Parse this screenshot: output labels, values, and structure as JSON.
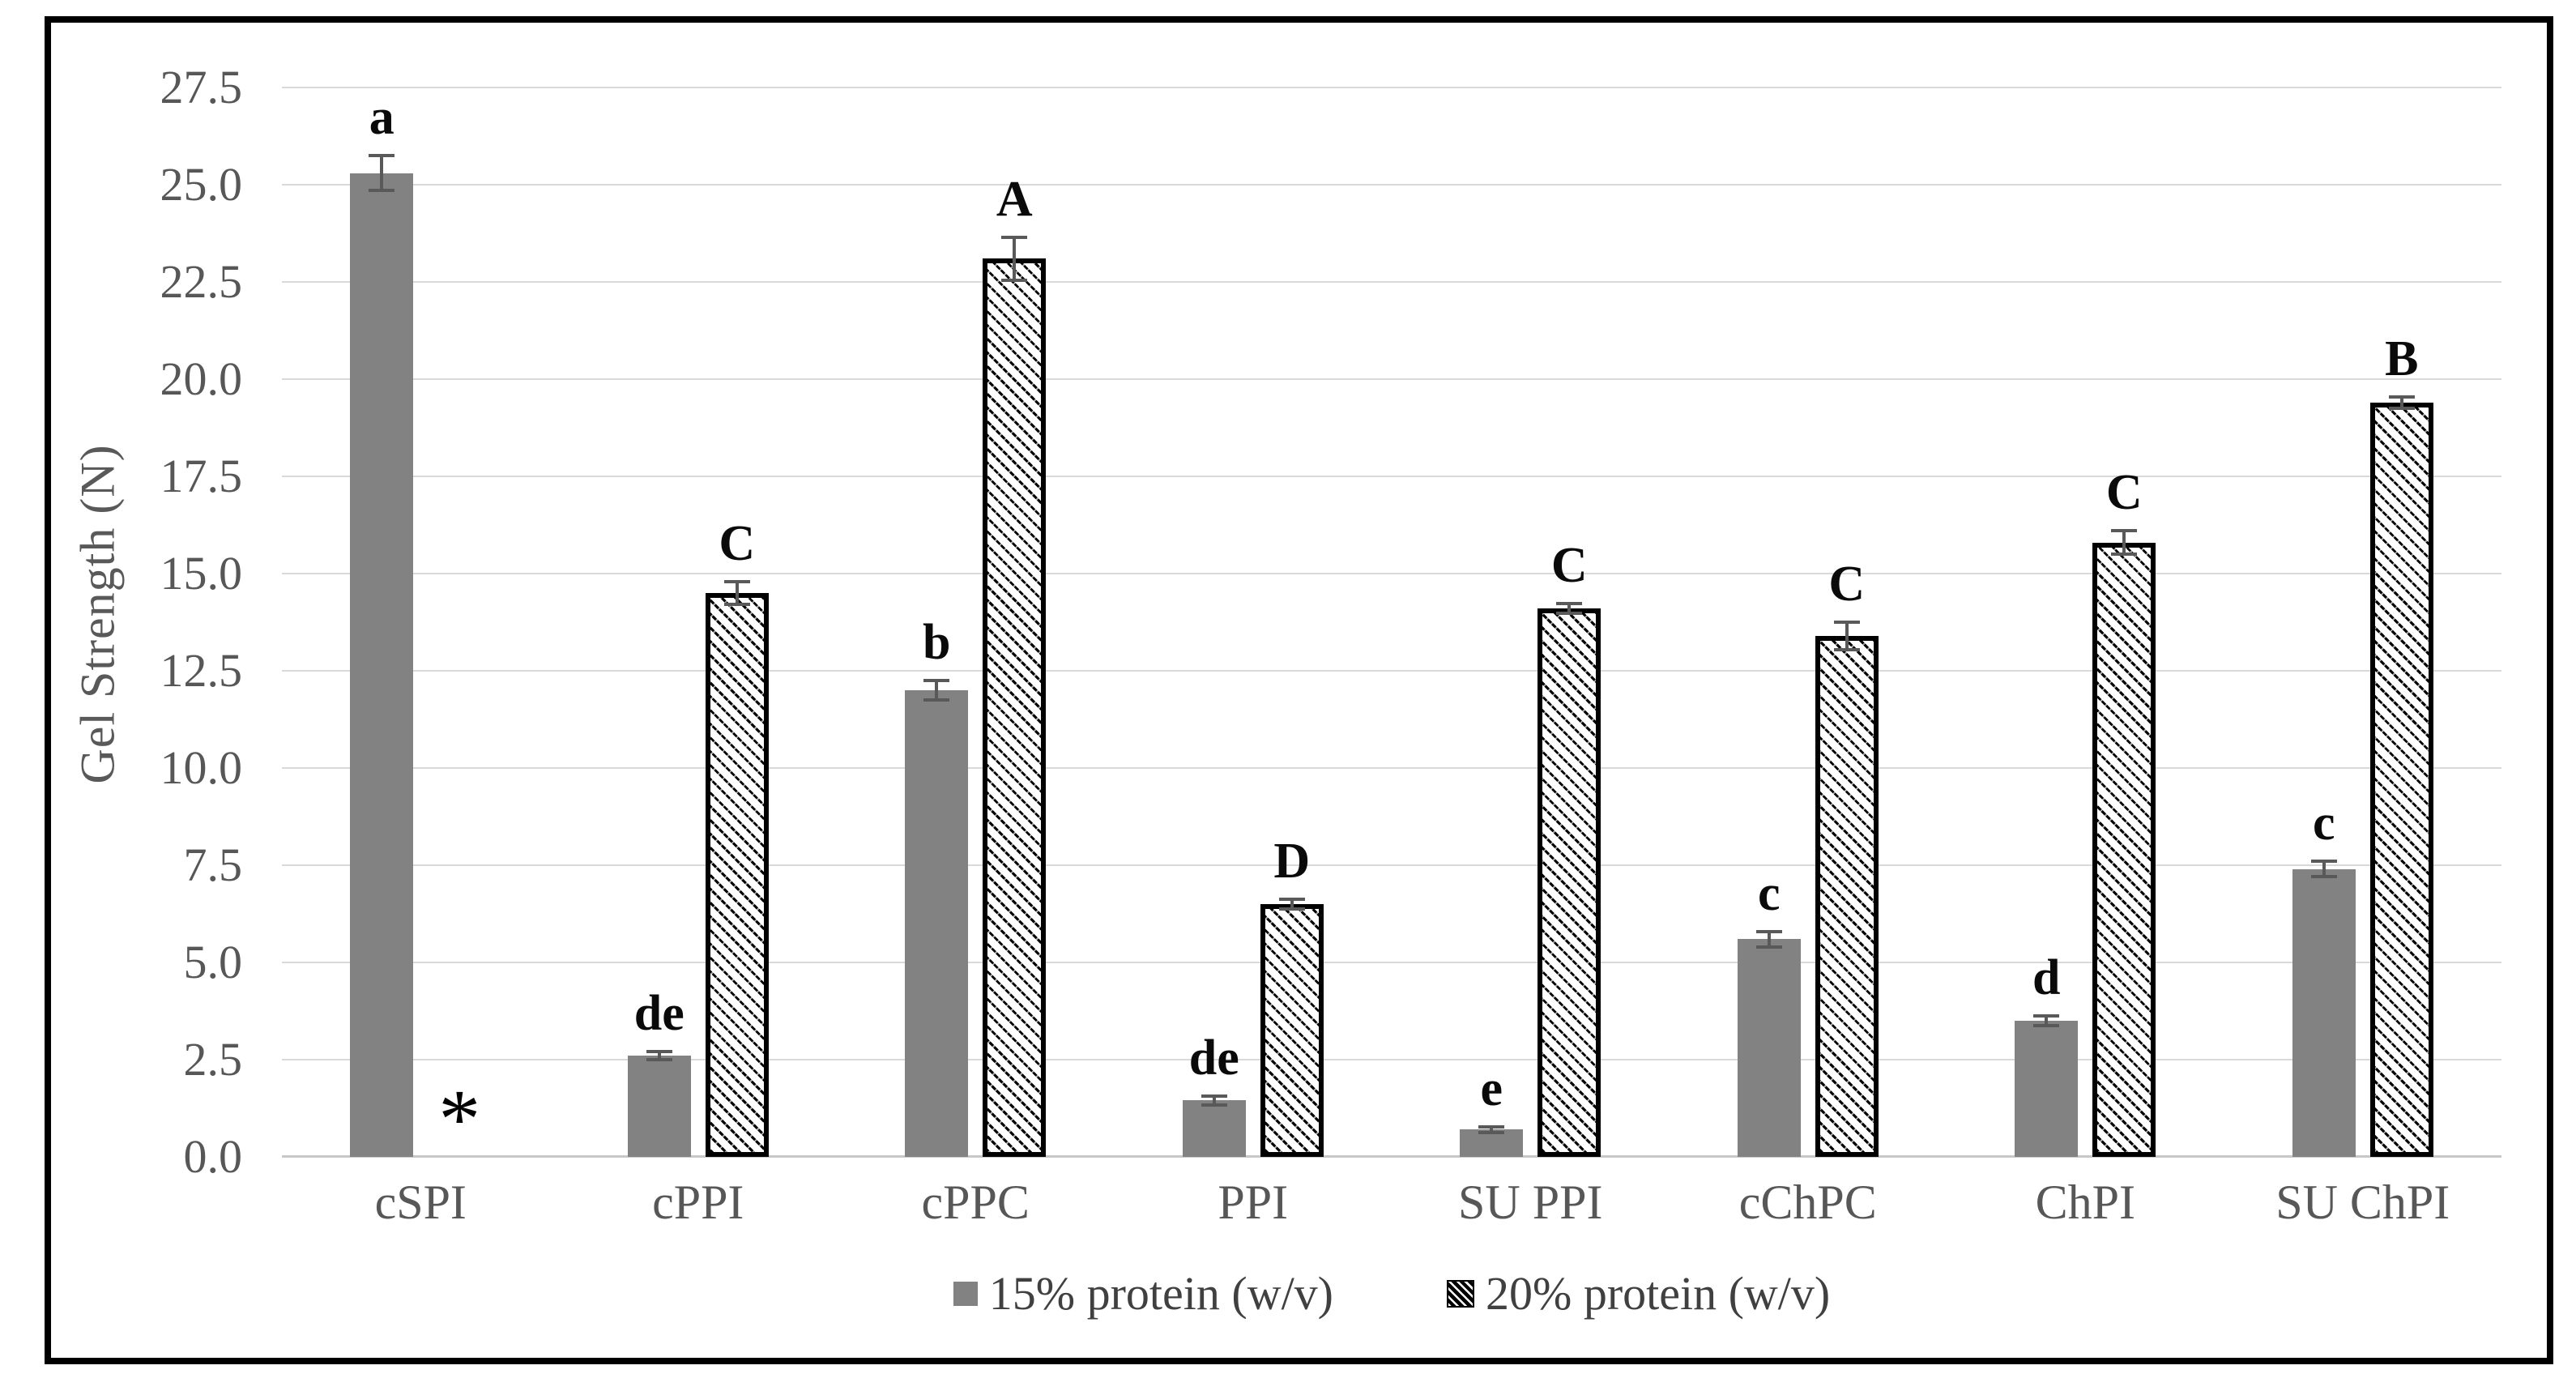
{
  "chart_data": {
    "type": "bar",
    "title": "",
    "xlabel": "",
    "ylabel": "Gel Strength (N)",
    "ylim": [
      0,
      27.5
    ],
    "ytick_step": 2.5,
    "yticks": [
      "27.5",
      "25.0",
      "22.5",
      "20.0",
      "17.5",
      "15.0",
      "12.5",
      "10.0",
      "7.5",
      "5.0",
      "2.5",
      "0.0"
    ],
    "grid": true,
    "legend_position": "bottom",
    "categories": [
      "cSPI",
      "cPPI",
      "cPPC",
      "PPI",
      "SU PPI",
      "cChPC",
      "ChPI",
      "SU ChPI"
    ],
    "series": [
      {
        "name": "15% protein (w/v)",
        "style": "solid-gray",
        "values": [
          25.3,
          2.6,
          12.0,
          1.45,
          0.7,
          5.6,
          3.5,
          7.4
        ],
        "errors": [
          0.45,
          0.1,
          0.25,
          0.12,
          0.07,
          0.2,
          0.12,
          0.2
        ],
        "labels": [
          "a",
          "de",
          "b",
          "de",
          "e",
          "c",
          "d",
          "c"
        ]
      },
      {
        "name": "20% protein (w/v)",
        "style": "hatched",
        "values": [
          null,
          14.5,
          23.1,
          6.5,
          14.1,
          13.4,
          15.8,
          19.4
        ],
        "errors": [
          null,
          0.3,
          0.55,
          0.12,
          0.12,
          0.35,
          0.3,
          0.15
        ],
        "labels": [
          "*",
          "C",
          "A",
          "D",
          "C",
          "C",
          "C",
          "B"
        ]
      }
    ],
    "missing_marker": {
      "series": "20% protein (w/v)",
      "category": "cSPI",
      "symbol": "*"
    }
  },
  "colors": {
    "solid_bar": "#828282",
    "hatch_line": "#000000",
    "hatch_background": "#ffffff",
    "gridline": "#d9d9d9",
    "axis_text": "#575757",
    "error_bar": "#595959",
    "frame_border": "#000000"
  }
}
